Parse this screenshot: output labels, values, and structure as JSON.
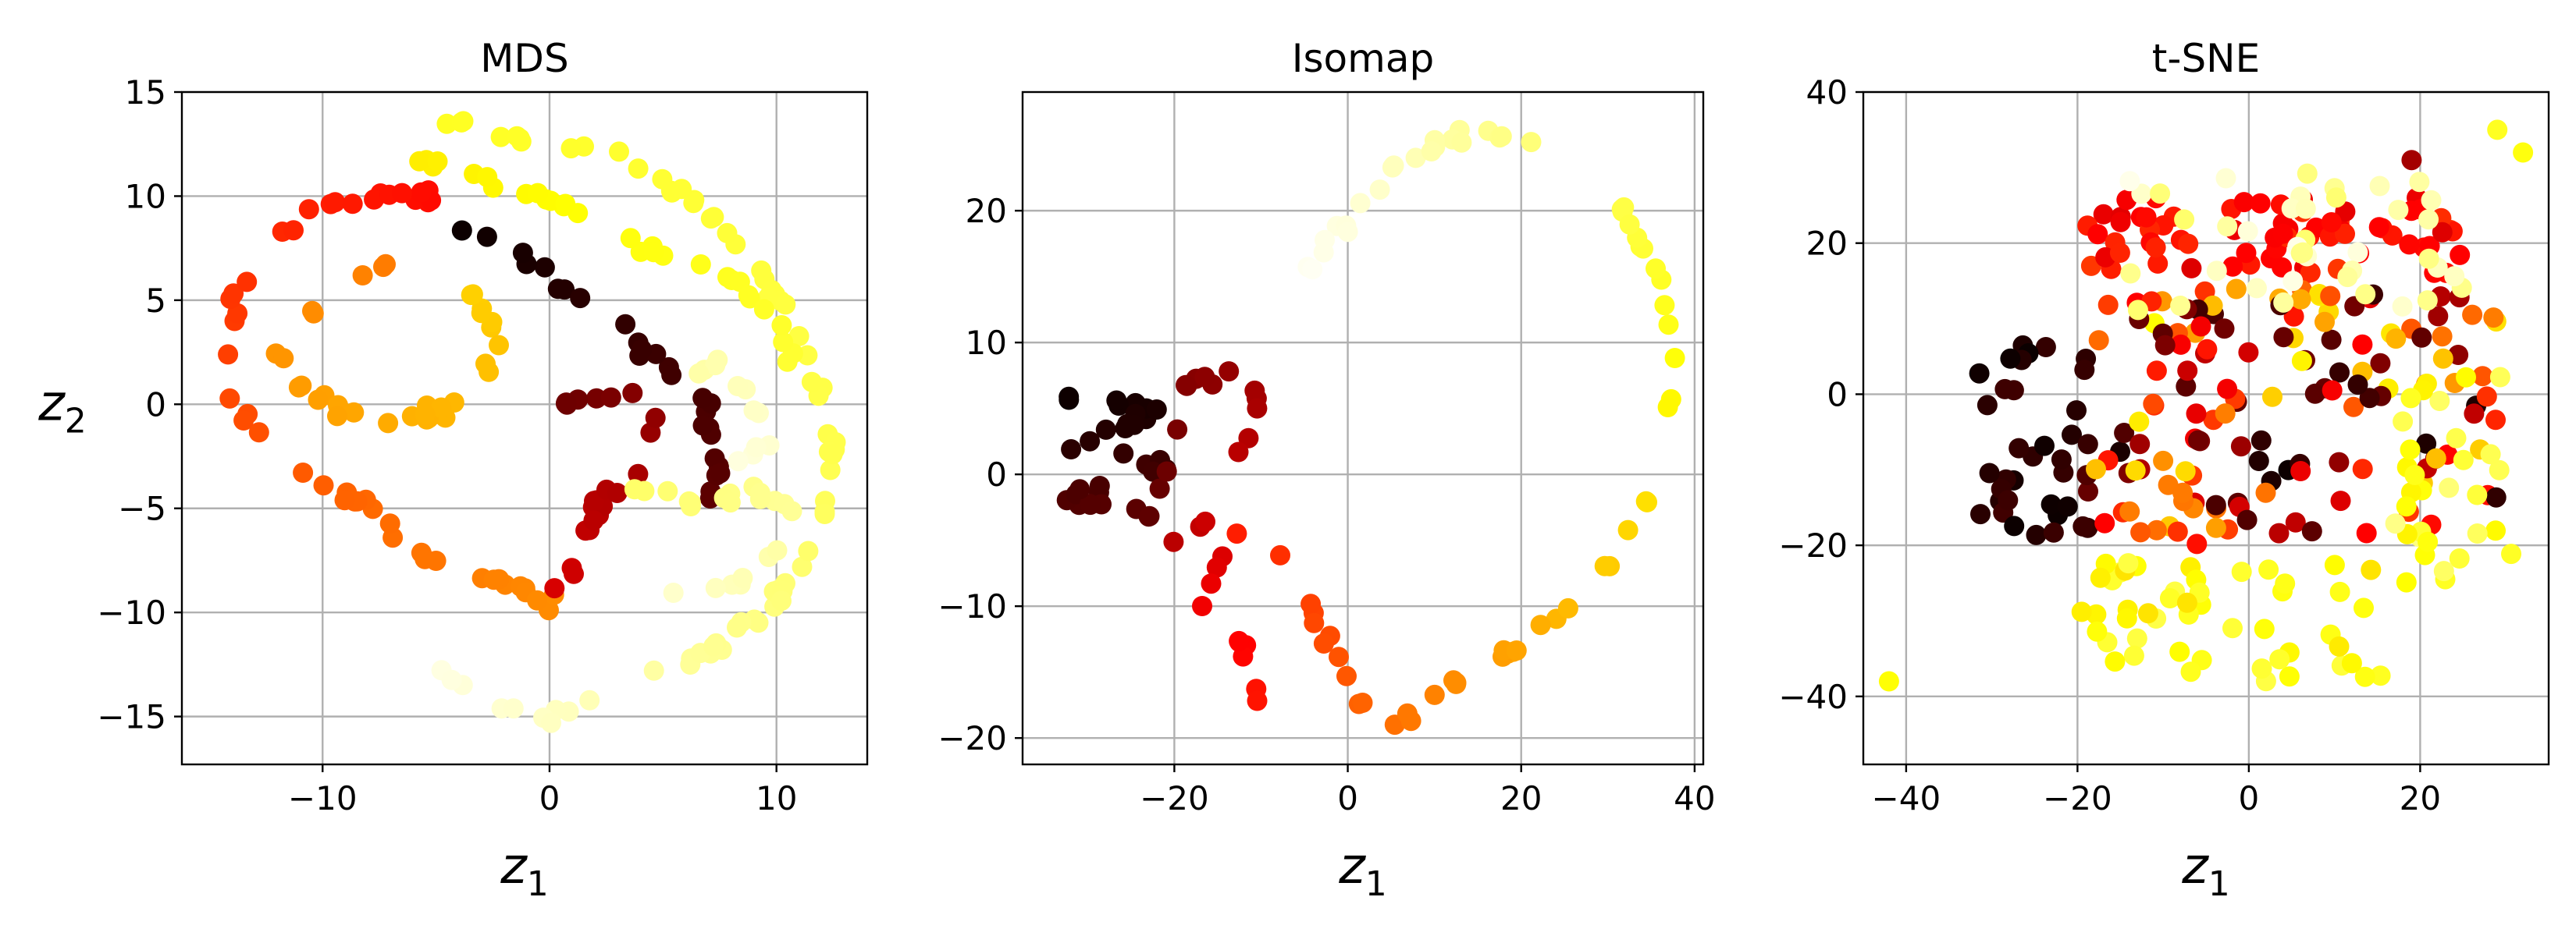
{
  "chart_data": [
    {
      "type": "scatter",
      "title": "MDS",
      "xlabel": "z",
      "xlabel_sub": "1",
      "ylabel": "z",
      "ylabel_sub": "2",
      "xlim": [
        -16.2,
        14.0
      ],
      "ylim": [
        -17.3,
        15.0
      ],
      "xticks": [
        -10,
        0,
        10
      ],
      "xtick_labels": [
        "−10",
        "0",
        "10"
      ],
      "yticks": [
        -15,
        -10,
        -5,
        0,
        5,
        10,
        15
      ],
      "ytick_labels": [
        "−15",
        "−10",
        "−5",
        "0",
        "5",
        "10",
        "15"
      ],
      "grid": true,
      "colormap": "hot (color encodes position along unrolled manifold, 0 = black, 1 = pale yellow)",
      "curve_segments": [
        {
          "points": [
            [
              -4.5,
              13.5
            ],
            [
              0,
              12.5
            ],
            [
              3,
              12
            ],
            [
              6,
              10
            ],
            [
              8,
              8
            ],
            [
              10,
              5
            ],
            [
              11.5,
              2
            ],
            [
              12.5,
              -2
            ]
          ],
          "t": [
            0.78,
            0.82
          ]
        },
        {
          "points": [
            [
              12.5,
              -2
            ],
            [
              12,
              -6
            ],
            [
              11,
              -8
            ],
            [
              9.5,
              -10
            ],
            [
              7,
              -12
            ],
            [
              4,
              -13.5
            ],
            [
              0,
              -15
            ],
            [
              -3,
              -14
            ],
            [
              -6,
              -12
            ]
          ],
          "t": [
            0.82,
            0.98
          ]
        },
        {
          "points": [
            [
              -5,
              10
            ],
            [
              -9,
              10
            ],
            [
              -12,
              8
            ],
            [
              -14,
              5
            ],
            [
              -14,
              0
            ],
            [
              -11,
              -3
            ],
            [
              -8,
              -5
            ],
            [
              -6,
              -7
            ],
            [
              -4,
              -8
            ],
            [
              -1,
              -9
            ],
            [
              1,
              -10
            ]
          ],
          "t": [
            0.38,
            0.58
          ]
        },
        {
          "points": [
            [
              -7,
              7
            ],
            [
              -10,
              5
            ],
            [
              -12,
              2
            ],
            [
              -10,
              0
            ],
            [
              -7,
              -1
            ],
            [
              -4,
              0
            ],
            [
              -2,
              3
            ],
            [
              -4,
              6
            ]
          ],
          "t": [
            0.55,
            0.68
          ]
        },
        {
          "points": [
            [
              -4,
              8.5
            ],
            [
              -1,
              7
            ],
            [
              1,
              5
            ],
            [
              3,
              4
            ],
            [
              5,
              2
            ],
            [
              7,
              0
            ],
            [
              7.5,
              -3
            ],
            [
              7,
              -5
            ]
          ],
          "t": [
            0.0,
            0.12
          ]
        },
        {
          "points": [
            [
              -1,
              1
            ],
            [
              1,
              0
            ],
            [
              3,
              0.5
            ],
            [
              5,
              0
            ],
            [
              4,
              -3
            ],
            [
              2,
              -5
            ],
            [
              1,
              -8
            ],
            [
              0,
              -9.5
            ]
          ],
          "t": [
            0.12,
            0.3
          ]
        },
        {
          "points": [
            [
              4,
              -4
            ],
            [
              7,
              -5
            ],
            [
              9,
              -4
            ],
            [
              11,
              -5
            ],
            [
              9.5,
              -8
            ],
            [
              7,
              -9
            ],
            [
              5,
              -9
            ]
          ],
          "t": [
            0.85,
            0.95
          ]
        },
        {
          "points": [
            [
              5,
              1.5
            ],
            [
              7.5,
              2
            ],
            [
              9,
              0
            ],
            [
              9.5,
              -2
            ],
            [
              8,
              -3
            ]
          ],
          "t": [
            0.9,
            0.97
          ]
        },
        {
          "points": [
            [
              -6,
              12
            ],
            [
              -2,
              10.5
            ],
            [
              2,
              9
            ],
            [
              5,
              7
            ],
            [
              8,
              6
            ],
            [
              10,
              4
            ],
            [
              11,
              1
            ]
          ],
          "t": [
            0.72,
            0.8
          ]
        }
      ]
    },
    {
      "type": "scatter",
      "title": "Isomap",
      "xlabel": "z",
      "xlabel_sub": "1",
      "ylabel": "",
      "xlim": [
        -37.5,
        41.0
      ],
      "ylim": [
        -22.0,
        29.0
      ],
      "xticks": [
        -20,
        0,
        20,
        40
      ],
      "xtick_labels": [
        "−20",
        "0",
        "20",
        "40"
      ],
      "yticks": [
        -20,
        -10,
        0,
        10,
        20
      ],
      "ytick_labels": [
        "−20",
        "−10",
        "0",
        "10",
        "20"
      ],
      "grid": true,
      "colormap": "hot",
      "curve_segments": [
        {
          "points": [
            [
              -34,
              6
            ],
            [
              -22,
              5
            ],
            [
              -32,
              2
            ],
            [
              -20,
              1
            ],
            [
              -33,
              -2
            ],
            [
              -22,
              -3
            ]
          ],
          "t": [
            0.0,
            0.12
          ]
        },
        {
          "points": [
            [
              -22,
              -3
            ],
            [
              -21,
              3
            ],
            [
              -18,
              7
            ],
            [
              -12,
              8
            ],
            [
              -10,
              5
            ],
            [
              -12,
              1
            ]
          ],
          "t": [
            0.12,
            0.25
          ]
        },
        {
          "points": [
            [
              -20,
              -5
            ],
            [
              -16,
              -3
            ],
            [
              -14,
              -6
            ],
            [
              -17,
              -10
            ],
            [
              -12,
              -13
            ],
            [
              -10,
              -18
            ]
          ],
          "t": [
            0.25,
            0.4
          ]
        },
        {
          "points": [
            [
              -14,
              -4
            ],
            [
              -9,
              -5
            ],
            [
              -6,
              -8
            ],
            [
              -3,
              -12
            ],
            [
              0,
              -16
            ],
            [
              3,
              -19
            ],
            [
              8,
              -18
            ],
            [
              13,
              -15
            ]
          ],
          "t": [
            0.4,
            0.58
          ]
        },
        {
          "points": [
            [
              13,
              -15
            ],
            [
              20,
              -13
            ],
            [
              25,
              -10
            ],
            [
              30,
              -7
            ],
            [
              34,
              -2
            ],
            [
              37,
              4
            ],
            [
              37,
              10
            ],
            [
              35,
              16
            ],
            [
              31,
              21
            ]
          ],
          "t": [
            0.58,
            0.82
          ]
        },
        {
          "points": [
            [
              31,
              21
            ],
            [
              24,
              25
            ],
            [
              15,
              26
            ],
            [
              6,
              24
            ],
            [
              1,
              20
            ],
            [
              -5,
              15
            ]
          ],
          "t": [
            0.82,
            0.99
          ]
        }
      ]
    },
    {
      "type": "scatter",
      "title": "t-SNE",
      "xlabel": "z",
      "xlabel_sub": "1",
      "ylabel": "",
      "xlim": [
        -45.0,
        35.0
      ],
      "ylim": [
        -49.0,
        40.0
      ],
      "xticks": [
        -40,
        -20,
        0,
        20
      ],
      "xtick_labels": [
        "−40",
        "−20",
        "0",
        "20"
      ],
      "yticks": [
        -40,
        -20,
        0,
        20,
        40
      ],
      "ytick_labels": [
        "−40",
        "−20",
        "0",
        "20",
        "40"
      ],
      "grid": true,
      "colormap": "hot",
      "clusters": [
        {
          "center": [
            3,
            21
          ],
          "spread": [
            22,
            5
          ],
          "t": [
            0.3,
            0.45
          ],
          "n": 70
        },
        {
          "center": [
            -25,
            -6
          ],
          "spread": [
            7,
            13
          ],
          "t": [
            0.0,
            0.08
          ],
          "n": 35
        },
        {
          "center": [
            5,
            -3
          ],
          "spread": [
            24,
            17
          ],
          "t": [
            0.0,
            0.75
          ],
          "n": 150
        },
        {
          "center": [
            5,
            20
          ],
          "spread": [
            20,
            10
          ],
          "t": [
            0.85,
            0.98
          ],
          "n": 40
        },
        {
          "center": [
            -2,
            -30
          ],
          "spread": [
            18,
            8
          ],
          "t": [
            0.7,
            0.82
          ],
          "n": 50
        },
        {
          "center": [
            24,
            -10
          ],
          "spread": [
            7,
            15
          ],
          "t": [
            0.72,
            0.88
          ],
          "n": 30
        }
      ],
      "outliers": [
        {
          "x": -42,
          "y": -38,
          "t": 0.75
        },
        {
          "x": 29,
          "y": 35,
          "t": 0.78
        },
        {
          "x": 32,
          "y": 32,
          "t": 0.76
        },
        {
          "x": 19,
          "y": 31,
          "t": 0.22
        }
      ]
    }
  ]
}
